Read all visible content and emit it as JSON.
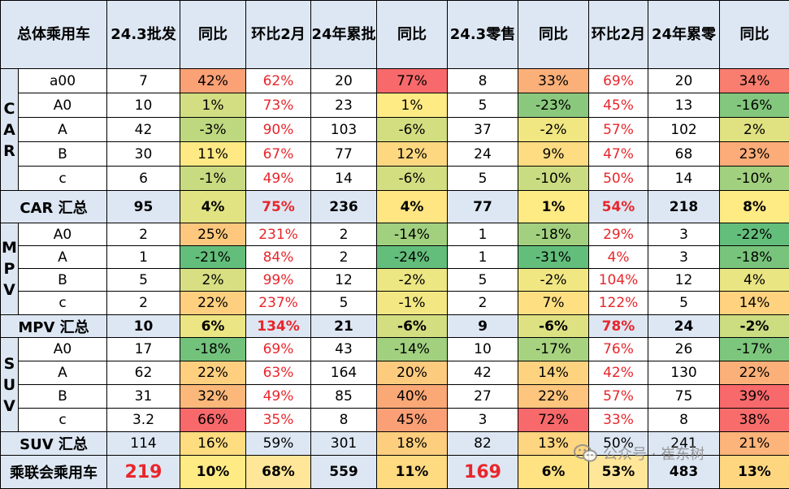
{
  "header": {
    "category": "总体乘用车",
    "cols": [
      "24.3批发",
      "同比",
      "环比2月",
      "24年累批",
      "同比",
      "24.3零售",
      "同比",
      "环比2月",
      "24年累零",
      "同比"
    ]
  },
  "colors": {
    "header_bg": "#dde7f3",
    "red_text": "#e8262b",
    "scale_low": "#f8696b",
    "scale_mid": "#ffeb84",
    "scale_high": "#63be7b"
  },
  "groups": [
    {
      "label": "CAR",
      "rows": [
        {
          "model": "a00",
          "wholesale": "7",
          "wholesale_yoy": "42%",
          "wholesale_mom": "62%",
          "ytd_wholesale": "20",
          "ytd_wholesale_yoy": "77%",
          "retail": "8",
          "retail_yoy": "33%",
          "retail_mom": "69%",
          "ytd_retail": "20",
          "ytd_retail_yoy": "34%"
        },
        {
          "model": "A0",
          "wholesale": "10",
          "wholesale_yoy": "1%",
          "wholesale_mom": "73%",
          "ytd_wholesale": "23",
          "ytd_wholesale_yoy": "1%",
          "retail": "5",
          "retail_yoy": "-23%",
          "retail_mom": "45%",
          "ytd_retail": "13",
          "ytd_retail_yoy": "-16%"
        },
        {
          "model": "A",
          "wholesale": "42",
          "wholesale_yoy": "-3%",
          "wholesale_mom": "90%",
          "ytd_wholesale": "103",
          "ytd_wholesale_yoy": "-6%",
          "retail": "37",
          "retail_yoy": "-2%",
          "retail_mom": "57%",
          "ytd_retail": "102",
          "ytd_retail_yoy": "2%"
        },
        {
          "model": "B",
          "wholesale": "30",
          "wholesale_yoy": "11%",
          "wholesale_mom": "67%",
          "ytd_wholesale": "77",
          "ytd_wholesale_yoy": "12%",
          "retail": "24",
          "retail_yoy": "9%",
          "retail_mom": "47%",
          "ytd_retail": "68",
          "ytd_retail_yoy": "23%"
        },
        {
          "model": "c",
          "wholesale": "6",
          "wholesale_yoy": "-1%",
          "wholesale_mom": "49%",
          "ytd_wholesale": "14",
          "ytd_wholesale_yoy": "-6%",
          "retail": "5",
          "retail_yoy": "-10%",
          "retail_mom": "50%",
          "ytd_retail": "14",
          "ytd_retail_yoy": "-10%"
        }
      ],
      "summary": {
        "label": "CAR 汇总",
        "wholesale": "95",
        "wholesale_yoy": "4%",
        "wholesale_mom": "75%",
        "ytd_wholesale": "236",
        "ytd_wholesale_yoy": "4%",
        "retail": "77",
        "retail_yoy": "1%",
        "retail_mom": "54%",
        "ytd_retail": "218",
        "ytd_retail_yoy": "8%"
      }
    },
    {
      "label": "MPV",
      "rows": [
        {
          "model": "A0",
          "wholesale": "2",
          "wholesale_yoy": "25%",
          "wholesale_mom": "231%",
          "ytd_wholesale": "2",
          "ytd_wholesale_yoy": "-14%",
          "retail": "1",
          "retail_yoy": "-18%",
          "retail_mom": "29%",
          "ytd_retail": "3",
          "ytd_retail_yoy": "-22%"
        },
        {
          "model": "A",
          "wholesale": "1",
          "wholesale_yoy": "-21%",
          "wholesale_mom": "84%",
          "ytd_wholesale": "2",
          "ytd_wholesale_yoy": "-24%",
          "retail": "1",
          "retail_yoy": "-31%",
          "retail_mom": "4%",
          "ytd_retail": "3",
          "ytd_retail_yoy": "-18%"
        },
        {
          "model": "B",
          "wholesale": "5",
          "wholesale_yoy": "2%",
          "wholesale_mom": "99%",
          "ytd_wholesale": "12",
          "ytd_wholesale_yoy": "-2%",
          "retail": "5",
          "retail_yoy": "-2%",
          "retail_mom": "104%",
          "ytd_retail": "12",
          "ytd_retail_yoy": "4%"
        },
        {
          "model": "c",
          "wholesale": "2",
          "wholesale_yoy": "22%",
          "wholesale_mom": "237%",
          "ytd_wholesale": "5",
          "ytd_wholesale_yoy": "-1%",
          "retail": "2",
          "retail_yoy": "7%",
          "retail_mom": "122%",
          "ytd_retail": "5",
          "ytd_retail_yoy": "14%"
        }
      ],
      "summary": {
        "label": "MPV 汇总",
        "wholesale": "10",
        "wholesale_yoy": "6%",
        "wholesale_mom": "134%",
        "ytd_wholesale": "21",
        "ytd_wholesale_yoy": "-6%",
        "retail": "9",
        "retail_yoy": "-6%",
        "retail_mom": "78%",
        "ytd_retail": "24",
        "ytd_retail_yoy": "-2%"
      }
    },
    {
      "label": "SUV",
      "rows": [
        {
          "model": "A0",
          "wholesale": "17",
          "wholesale_yoy": "-18%",
          "wholesale_mom": "69%",
          "ytd_wholesale": "43",
          "ytd_wholesale_yoy": "-14%",
          "retail": "10",
          "retail_yoy": "-17%",
          "retail_mom": "76%",
          "ytd_retail": "26",
          "ytd_retail_yoy": "-17%"
        },
        {
          "model": "A",
          "wholesale": "62",
          "wholesale_yoy": "22%",
          "wholesale_mom": "63%",
          "ytd_wholesale": "164",
          "ytd_wholesale_yoy": "20%",
          "retail": "42",
          "retail_yoy": "14%",
          "retail_mom": "42%",
          "ytd_retail": "130",
          "ytd_retail_yoy": "22%"
        },
        {
          "model": "B",
          "wholesale": "31",
          "wholesale_yoy": "32%",
          "wholesale_mom": "49%",
          "ytd_wholesale": "85",
          "ytd_wholesale_yoy": "40%",
          "retail": "27",
          "retail_yoy": "22%",
          "retail_mom": "57%",
          "ytd_retail": "75",
          "ytd_retail_yoy": "39%"
        },
        {
          "model": "c",
          "wholesale": "3.2",
          "wholesale_yoy": "66%",
          "wholesale_mom": "35%",
          "ytd_wholesale": "8",
          "ytd_wholesale_yoy": "45%",
          "retail": "3",
          "retail_yoy": "72%",
          "retail_mom": "33%",
          "ytd_retail": "8",
          "ytd_retail_yoy": "38%"
        }
      ],
      "summary": {
        "label": "SUV 汇总",
        "wholesale": "114",
        "wholesale_yoy": "16%",
        "wholesale_mom": "59%",
        "ytd_wholesale": "301",
        "ytd_wholesale_yoy": "18%",
        "retail": "82",
        "retail_yoy": "13%",
        "retail_mom": "50%",
        "ytd_retail": "241",
        "ytd_retail_yoy": "21%"
      }
    }
  ],
  "total": {
    "label": "乘联会乘用车",
    "wholesale": "219",
    "wholesale_yoy": "10%",
    "wholesale_mom": "68%",
    "ytd_wholesale": "559",
    "ytd_wholesale_yoy": "11%",
    "retail": "169",
    "retail_yoy": "6%",
    "retail_mom": "53%",
    "ytd_retail": "483",
    "ytd_retail_yoy": "13%"
  },
  "watermark": {
    "text": "公众号 · 崔东树",
    "icon": "wechat-icon"
  }
}
